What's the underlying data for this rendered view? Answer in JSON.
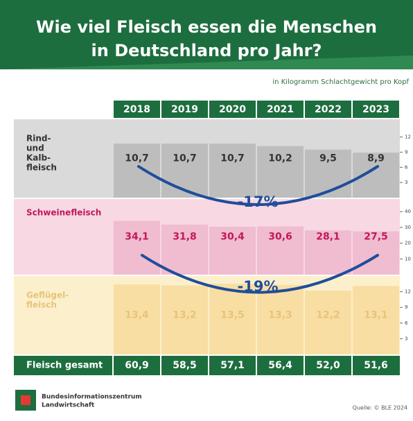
{
  "header": {
    "title": [
      "Wie viel Fleisch essen die Menschen",
      "in Deutschland pro Jahr?"
    ],
    "subtitle": "in Kilogramm Schlachtgewicht pro Kopf"
  },
  "chart_data": {
    "type": "bar",
    "categories": [
      "2018",
      "2019",
      "2020",
      "2021",
      "2022",
      "2023"
    ],
    "series": [
      {
        "name": [
          "Rind-",
          "und",
          "Kalb-",
          "fleisch"
        ],
        "values": [
          10.7,
          10.7,
          10.7,
          10.2,
          9.5,
          8.9
        ],
        "value_labels": [
          "10,7",
          "10,7",
          "10,7",
          "10,2",
          "9,5",
          "8,9"
        ],
        "color": "#bdbdbd",
        "background": "#dadada",
        "label_color": "#333333",
        "ylim": [
          0,
          15.5
        ],
        "yticks": [
          3,
          6,
          9,
          12
        ]
      },
      {
        "name": [
          "Schweinefleisch"
        ],
        "values": [
          34.1,
          31.8,
          30.4,
          30.6,
          28.1,
          27.5
        ],
        "value_labels": [
          "34,1",
          "31,8",
          "30,4",
          "30,6",
          "28,1",
          "27,5"
        ],
        "color": "#f0bccf",
        "background": "#f7d8e3",
        "label_color": "#c2185b",
        "ylim": [
          0,
          48
        ],
        "yticks": [
          10,
          20,
          30,
          40
        ]
      },
      {
        "name": [
          "Geflügel-",
          "fleisch"
        ],
        "values": [
          13.4,
          13.2,
          13.5,
          13.3,
          12.2,
          13.1
        ],
        "value_labels": [
          "13,4",
          "13,2",
          "13,5",
          "13,3",
          "12,2",
          "13,1"
        ],
        "color": "#f9dea3",
        "background": "#fcefcb",
        "label_color": "#e6c47a",
        "ylim": [
          0,
          15
        ],
        "yticks": [
          3,
          6,
          9,
          12
        ]
      }
    ],
    "totals": {
      "name": "Fleisch gesamt",
      "values": [
        60.9,
        58.5,
        57.1,
        56.4,
        52.0,
        51.6
      ],
      "value_labels": [
        "60,9",
        "58,5",
        "57,1",
        "56,4",
        "52,0",
        "51,6"
      ]
    },
    "annotations": [
      "-17%",
      "-19%"
    ]
  },
  "footer": {
    "logo": [
      "Bundesinformationszentrum",
      "Landwirtschaft"
    ],
    "source": "Quelle: © BLE 2024"
  }
}
